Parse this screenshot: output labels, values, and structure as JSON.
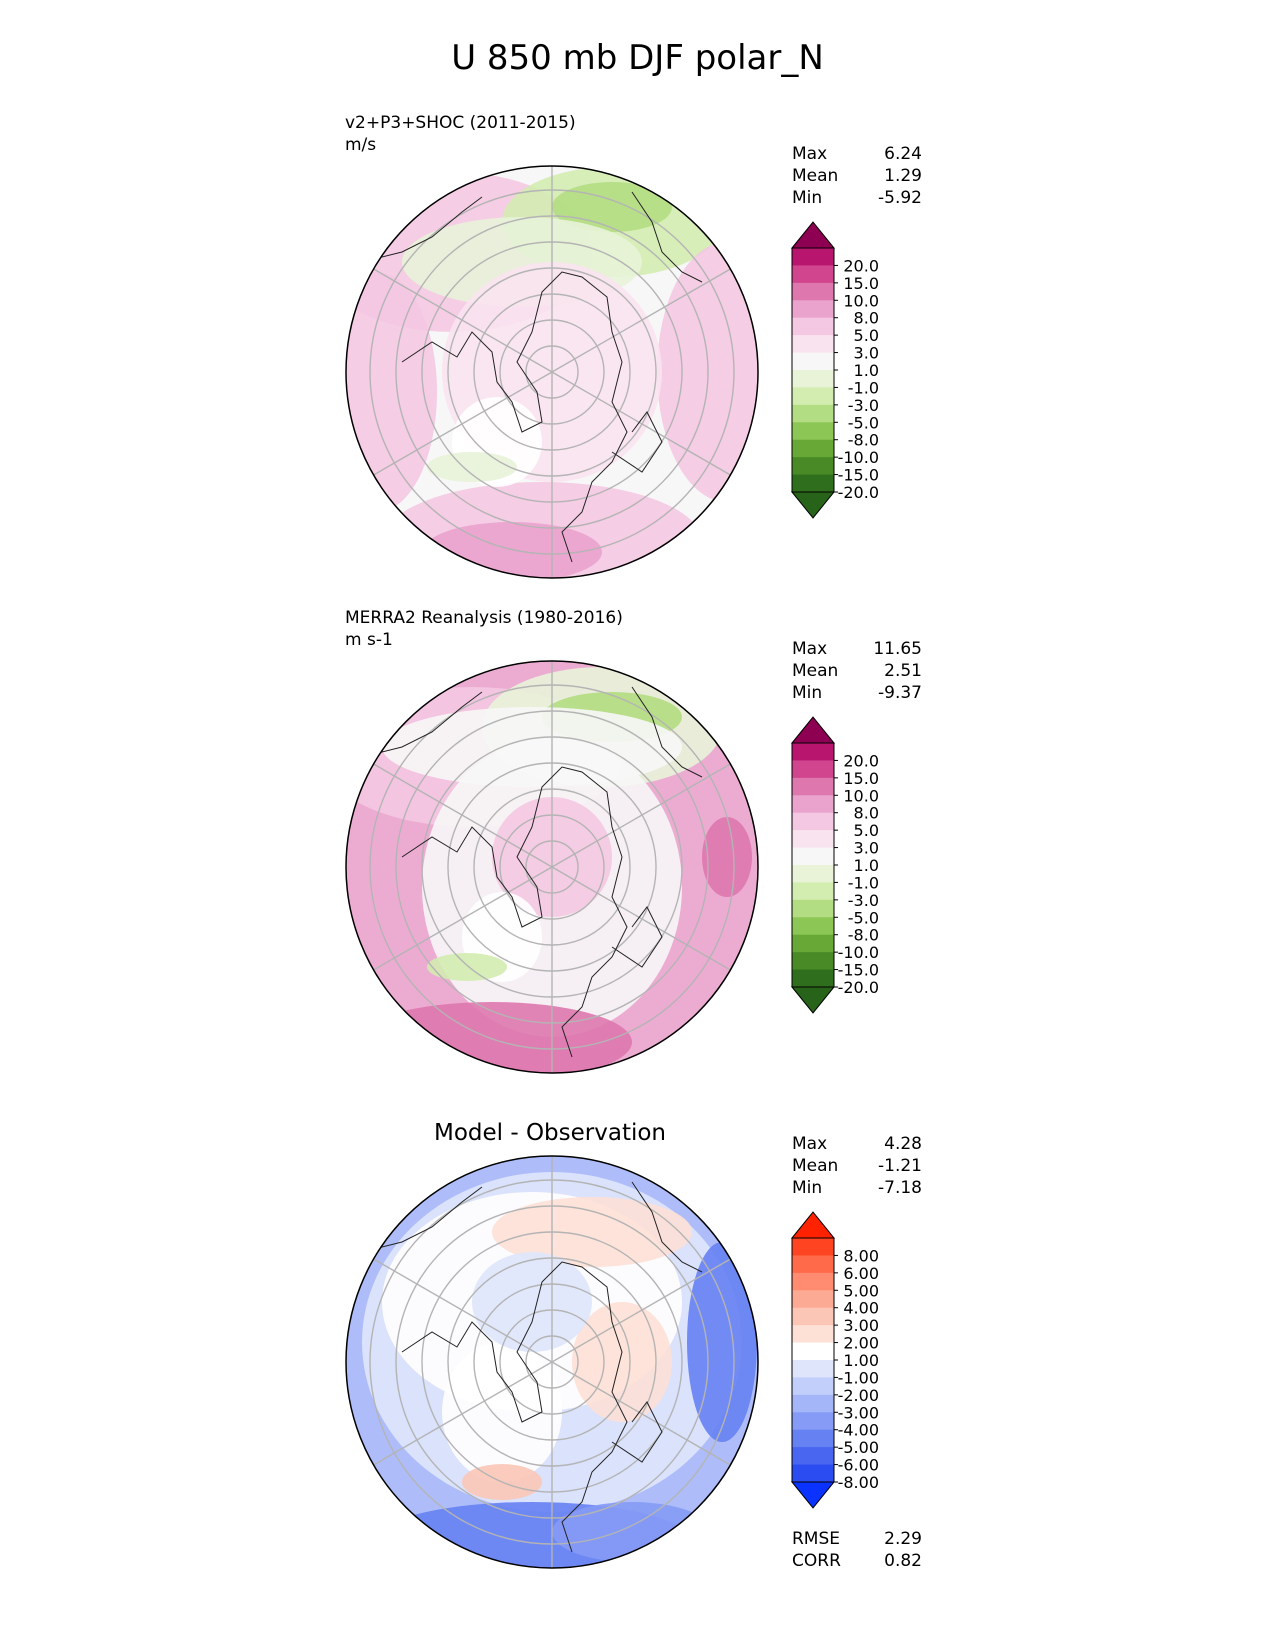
{
  "title": "U 850 mb DJF polar_N",
  "panels": [
    {
      "label": "v2+P3+SHOC (2011-2015)",
      "units": "m/s",
      "stats": [
        {
          "name": "Max",
          "value": "6.24"
        },
        {
          "name": "Mean",
          "value": "1.29"
        },
        {
          "name": "Min",
          "value": "-5.92"
        }
      ]
    },
    {
      "label": "MERRA2 Reanalysis (1980-2016)",
      "units": "m s-1",
      "stats": [
        {
          "name": "Max",
          "value": "11.65"
        },
        {
          "name": "Mean",
          "value": "2.51"
        },
        {
          "name": "Min",
          "value": "-9.37"
        }
      ]
    },
    {
      "title": "Model - Observation",
      "stats": [
        {
          "name": "Max",
          "value": "4.28"
        },
        {
          "name": "Mean",
          "value": "-1.21"
        },
        {
          "name": "Min",
          "value": "-7.18"
        }
      ],
      "metrics": [
        {
          "name": "RMSE",
          "value": "2.29"
        },
        {
          "name": "CORR",
          "value": "0.82"
        }
      ]
    }
  ],
  "chart_data": [
    {
      "type": "heatmap",
      "projection": "north polar stereographic",
      "colorbar": {
        "ticks": [
          "20.0",
          "15.0",
          "10.0",
          "8.0",
          "5.0",
          "3.0",
          "1.0",
          "-1.0",
          "-3.0",
          "-5.0",
          "-8.0",
          "-10.0",
          "-15.0",
          "-20.0"
        ],
        "colors": [
          "#8e0152",
          "#b8156e",
          "#d0458e",
          "#de77ae",
          "#eaa3cd",
          "#f4c8e2",
          "#f9e3ef",
          "#f7f7f7",
          "#e8f3d8",
          "#d3ecb0",
          "#b2dd82",
          "#8cc654",
          "#68a836",
          "#4a8a26",
          "#2f6e1c",
          "#276419"
        ]
      }
    },
    {
      "type": "heatmap",
      "projection": "north polar stereographic",
      "colorbar": {
        "ticks": [
          "20.0",
          "15.0",
          "10.0",
          "8.0",
          "5.0",
          "3.0",
          "1.0",
          "-1.0",
          "-3.0",
          "-5.0",
          "-8.0",
          "-10.0",
          "-15.0",
          "-20.0"
        ],
        "colors": [
          "#8e0152",
          "#b8156e",
          "#d0458e",
          "#de77ae",
          "#eaa3cd",
          "#f4c8e2",
          "#f9e3ef",
          "#f7f7f7",
          "#e8f3d8",
          "#d3ecb0",
          "#b2dd82",
          "#8cc654",
          "#68a836",
          "#4a8a26",
          "#2f6e1c",
          "#276419"
        ]
      }
    },
    {
      "type": "heatmap",
      "projection": "north polar stereographic",
      "colorbar": {
        "ticks": [
          "8.00",
          "6.00",
          "5.00",
          "4.00",
          "3.00",
          "2.00",
          "1.00",
          "-1.00",
          "-2.00",
          "-3.00",
          "-4.00",
          "-5.00",
          "-6.00",
          "-8.00"
        ],
        "colors": [
          "#ff2200",
          "#ff4422",
          "#ff6a4a",
          "#ff8c70",
          "#fdaa94",
          "#fbc6b6",
          "#fde0d6",
          "#ffffff",
          "#dfe6fc",
          "#c3cffb",
          "#a5b6f8",
          "#859bf5",
          "#6681f2",
          "#4866ef",
          "#2a4cf0",
          "#0a33ff"
        ]
      }
    }
  ]
}
